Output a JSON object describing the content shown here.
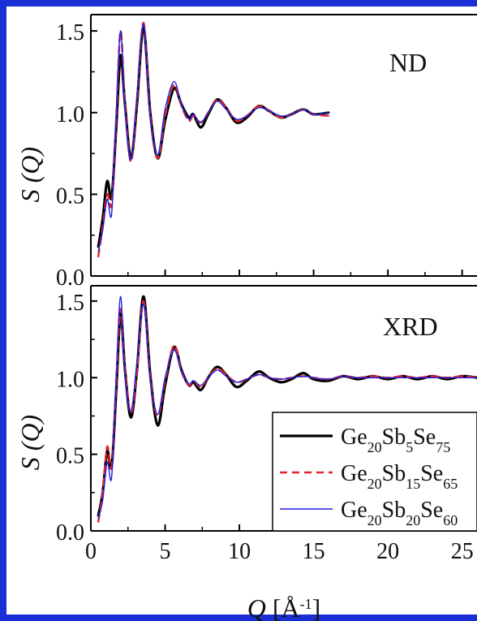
{
  "colors": {
    "frame": "#1a2fd6",
    "series": [
      "#000000",
      "#e3242b",
      "#2020e0"
    ]
  },
  "chart_data": [
    {
      "type": "line",
      "panel_label": "ND",
      "ylabel": "S (Q)",
      "ylim": [
        0.0,
        1.6
      ],
      "xlim": [
        0,
        26
      ],
      "x_ticks": [
        "0",
        "5",
        "10",
        "15",
        "20",
        "25"
      ],
      "y_ticks": [
        "0.0",
        "0.5",
        "1.0",
        "1.5"
      ],
      "x_range": [
        0.5,
        16
      ],
      "series": [
        {
          "name": "Ge20Sb5Se75",
          "style": "solid-thick",
          "points": [
            [
              0.5,
              0.18
            ],
            [
              0.8,
              0.35
            ],
            [
              1.1,
              0.58
            ],
            [
              1.4,
              0.48
            ],
            [
              1.7,
              0.9
            ],
            [
              2.0,
              1.35
            ],
            [
              2.3,
              1.05
            ],
            [
              2.7,
              0.72
            ],
            [
              3.1,
              1.05
            ],
            [
              3.55,
              1.52
            ],
            [
              4.0,
              1.0
            ],
            [
              4.5,
              0.72
            ],
            [
              5.0,
              0.95
            ],
            [
              5.6,
              1.15
            ],
            [
              6.1,
              1.05
            ],
            [
              6.6,
              0.97
            ],
            [
              6.9,
              0.99
            ],
            [
              7.4,
              0.91
            ],
            [
              7.9,
              0.99
            ],
            [
              8.5,
              1.08
            ],
            [
              9.1,
              1.03
            ],
            [
              9.8,
              0.94
            ],
            [
              10.5,
              0.97
            ],
            [
              11.3,
              1.04
            ],
            [
              12.0,
              1.01
            ],
            [
              12.8,
              0.97
            ],
            [
              13.5,
              0.99
            ],
            [
              14.3,
              1.02
            ],
            [
              15.0,
              0.99
            ],
            [
              16.0,
              1.0
            ]
          ]
        },
        {
          "name": "Ge20Sb15Se65",
          "style": "dashed",
          "points": [
            [
              0.5,
              0.12
            ],
            [
              0.8,
              0.3
            ],
            [
              1.1,
              0.5
            ],
            [
              1.4,
              0.44
            ],
            [
              1.7,
              0.95
            ],
            [
              2.0,
              1.5
            ],
            [
              2.3,
              1.05
            ],
            [
              2.7,
              0.7
            ],
            [
              3.1,
              1.08
            ],
            [
              3.55,
              1.55
            ],
            [
              4.0,
              0.98
            ],
            [
              4.5,
              0.72
            ],
            [
              5.0,
              0.98
            ],
            [
              5.6,
              1.17
            ],
            [
              6.1,
              1.04
            ],
            [
              6.6,
              0.95
            ],
            [
              6.9,
              0.98
            ],
            [
              7.4,
              0.94
            ],
            [
              7.9,
              1.0
            ],
            [
              8.5,
              1.08
            ],
            [
              9.1,
              1.03
            ],
            [
              9.8,
              0.95
            ],
            [
              10.5,
              0.98
            ],
            [
              11.3,
              1.04
            ],
            [
              12.0,
              1.01
            ],
            [
              12.8,
              0.97
            ],
            [
              13.5,
              0.99
            ],
            [
              14.3,
              1.02
            ],
            [
              15.0,
              0.99
            ],
            [
              16.0,
              0.98
            ]
          ]
        },
        {
          "name": "Ge20Sb20Se60",
          "style": "solid-thin",
          "points": [
            [
              0.5,
              0.15
            ],
            [
              0.8,
              0.28
            ],
            [
              1.1,
              0.47
            ],
            [
              1.4,
              0.38
            ],
            [
              1.7,
              0.98
            ],
            [
              2.0,
              1.5
            ],
            [
              2.3,
              1.02
            ],
            [
              2.7,
              0.71
            ],
            [
              3.1,
              1.1
            ],
            [
              3.55,
              1.54
            ],
            [
              4.0,
              0.97
            ],
            [
              4.5,
              0.74
            ],
            [
              5.0,
              1.02
            ],
            [
              5.6,
              1.19
            ],
            [
              6.1,
              1.05
            ],
            [
              6.6,
              0.96
            ],
            [
              6.9,
              0.99
            ],
            [
              7.4,
              0.94
            ],
            [
              7.9,
              1.0
            ],
            [
              8.5,
              1.07
            ],
            [
              9.1,
              1.02
            ],
            [
              9.8,
              0.96
            ],
            [
              10.5,
              0.98
            ],
            [
              11.3,
              1.03
            ],
            [
              12.0,
              1.01
            ],
            [
              12.8,
              0.98
            ],
            [
              13.5,
              0.99
            ],
            [
              14.3,
              1.02
            ],
            [
              15.0,
              0.99
            ],
            [
              16.0,
              1.0
            ]
          ]
        }
      ]
    },
    {
      "type": "line",
      "panel_label": "XRD",
      "ylabel": "S (Q)",
      "xlabel": "Q [Å-1]",
      "ylim": [
        0.0,
        1.6
      ],
      "xlim": [
        0,
        26
      ],
      "x_ticks": [
        "0",
        "5",
        "10",
        "15",
        "20",
        "25"
      ],
      "y_ticks": [
        "0.0",
        "0.5",
        "1.0",
        "1.5"
      ],
      "legend": "bottom-right",
      "series": [
        {
          "name": "Ge20Sb5Se75",
          "style": "solid-thick",
          "points": [
            [
              0.5,
              0.1
            ],
            [
              0.8,
              0.25
            ],
            [
              1.1,
              0.52
            ],
            [
              1.4,
              0.42
            ],
            [
              1.7,
              0.9
            ],
            [
              2.0,
              1.42
            ],
            [
              2.3,
              1.05
            ],
            [
              2.7,
              0.74
            ],
            [
              3.1,
              1.05
            ],
            [
              3.55,
              1.53
            ],
            [
              4.0,
              1.02
            ],
            [
              4.5,
              0.69
            ],
            [
              5.0,
              0.95
            ],
            [
              5.6,
              1.2
            ],
            [
              6.1,
              1.05
            ],
            [
              6.6,
              0.95
            ],
            [
              6.9,
              0.97
            ],
            [
              7.4,
              0.92
            ],
            [
              7.9,
              1.0
            ],
            [
              8.5,
              1.07
            ],
            [
              9.1,
              1.02
            ],
            [
              9.8,
              0.94
            ],
            [
              10.5,
              0.98
            ],
            [
              11.3,
              1.04
            ],
            [
              12.0,
              1.0
            ],
            [
              12.8,
              0.97
            ],
            [
              13.5,
              0.99
            ],
            [
              14.3,
              1.03
            ],
            [
              15.0,
              0.99
            ],
            [
              16.0,
              0.98
            ],
            [
              17.0,
              1.01
            ],
            [
              18.0,
              0.99
            ],
            [
              19.0,
              1.01
            ],
            [
              20.0,
              0.99
            ],
            [
              21.0,
              1.01
            ],
            [
              22.0,
              0.99
            ],
            [
              23.0,
              1.01
            ],
            [
              24.0,
              0.99
            ],
            [
              25.0,
              1.01
            ],
            [
              26.0,
              1.0
            ]
          ]
        },
        {
          "name": "Ge20Sb15Se65",
          "style": "dashed",
          "points": [
            [
              0.5,
              0.06
            ],
            [
              0.8,
              0.25
            ],
            [
              1.1,
              0.55
            ],
            [
              1.4,
              0.42
            ],
            [
              1.7,
              0.95
            ],
            [
              2.0,
              1.45
            ],
            [
              2.3,
              1.05
            ],
            [
              2.7,
              0.77
            ],
            [
              3.1,
              1.05
            ],
            [
              3.55,
              1.5
            ],
            [
              4.0,
              1.0
            ],
            [
              4.5,
              0.75
            ],
            [
              5.0,
              0.98
            ],
            [
              5.6,
              1.21
            ],
            [
              6.1,
              1.04
            ],
            [
              6.6,
              0.95
            ],
            [
              6.9,
              0.98
            ],
            [
              7.4,
              0.94
            ],
            [
              7.9,
              1.0
            ],
            [
              8.5,
              1.06
            ],
            [
              9.1,
              1.02
            ],
            [
              9.8,
              0.97
            ],
            [
              10.5,
              0.99
            ],
            [
              11.3,
              1.02
            ],
            [
              12.0,
              1.0
            ],
            [
              12.8,
              0.99
            ],
            [
              13.5,
              1.0
            ],
            [
              14.3,
              1.01
            ],
            [
              15.0,
              1.0
            ],
            [
              16.0,
              0.99
            ],
            [
              17.0,
              1.01
            ],
            [
              18.0,
              1.0
            ],
            [
              19.0,
              1.01
            ],
            [
              20.0,
              1.0
            ],
            [
              21.0,
              1.01
            ],
            [
              22.0,
              1.0
            ],
            [
              23.0,
              1.01
            ],
            [
              24.0,
              1.0
            ],
            [
              25.0,
              1.01
            ],
            [
              26.0,
              1.0
            ]
          ]
        },
        {
          "name": "Ge20Sb20Se60",
          "style": "solid-thin",
          "points": [
            [
              0.5,
              0.08
            ],
            [
              0.8,
              0.2
            ],
            [
              1.1,
              0.45
            ],
            [
              1.4,
              0.35
            ],
            [
              1.7,
              1.0
            ],
            [
              2.0,
              1.53
            ],
            [
              2.3,
              1.02
            ],
            [
              2.7,
              0.78
            ],
            [
              3.1,
              1.1
            ],
            [
              3.55,
              1.48
            ],
            [
              4.0,
              0.99
            ],
            [
              4.5,
              0.76
            ],
            [
              5.0,
              1.0
            ],
            [
              5.6,
              1.18
            ],
            [
              6.1,
              1.04
            ],
            [
              6.6,
              0.96
            ],
            [
              6.9,
              0.98
            ],
            [
              7.4,
              0.95
            ],
            [
              7.9,
              1.0
            ],
            [
              8.5,
              1.05
            ],
            [
              9.1,
              1.01
            ],
            [
              9.8,
              0.97
            ],
            [
              10.5,
              0.99
            ],
            [
              11.3,
              1.02
            ],
            [
              12.0,
              1.0
            ],
            [
              12.8,
              0.99
            ],
            [
              13.5,
              1.0
            ],
            [
              14.3,
              1.01
            ],
            [
              15.0,
              1.0
            ],
            [
              16.0,
              0.99
            ],
            [
              17.0,
              1.01
            ],
            [
              18.0,
              1.0
            ],
            [
              19.0,
              1.0
            ],
            [
              20.0,
              1.0
            ],
            [
              21.0,
              1.0
            ],
            [
              22.0,
              1.0
            ],
            [
              23.0,
              1.0
            ],
            [
              24.0,
              1.0
            ],
            [
              25.0,
              1.0
            ],
            [
              26.0,
              1.0
            ]
          ]
        }
      ]
    }
  ]
}
